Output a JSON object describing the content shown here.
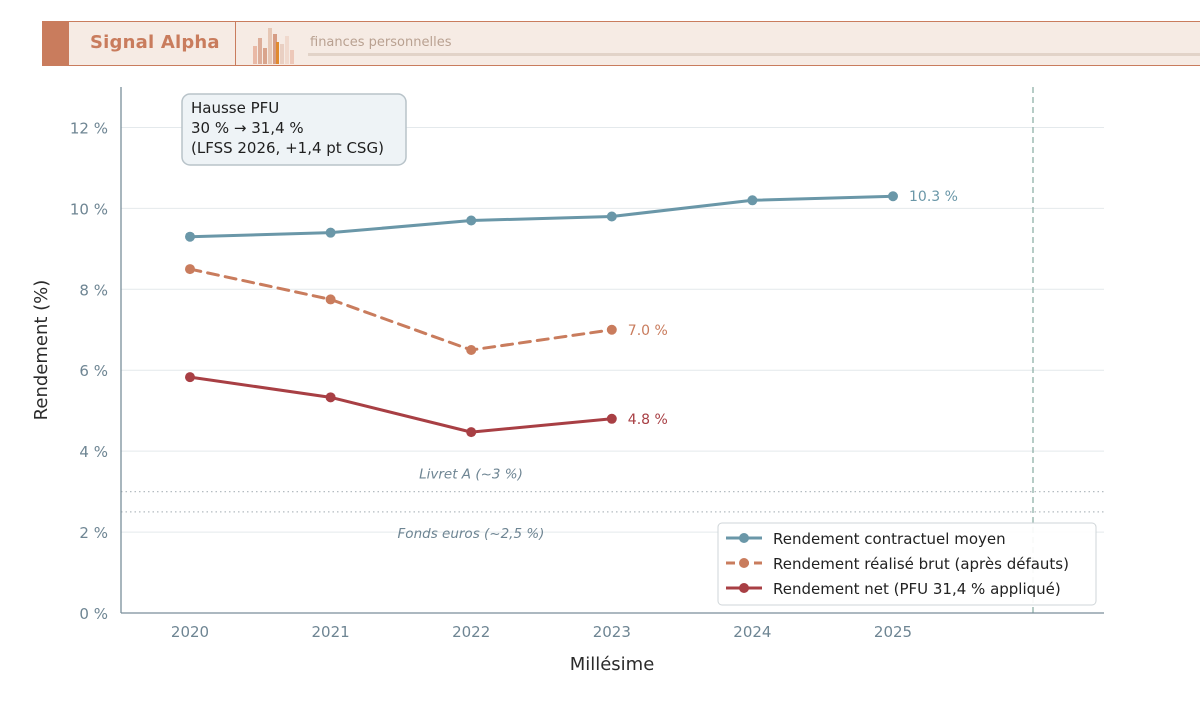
{
  "header": {
    "brand": "Signal Alpha",
    "tagline": "finances personnelles",
    "accent": "#c97c5d"
  },
  "chart_data": {
    "type": "line",
    "xlabel": "Millésime",
    "ylabel": "Rendement (%)",
    "ylim": [
      0,
      13
    ],
    "yticks": [
      0,
      2,
      4,
      6,
      8,
      10,
      12
    ],
    "ytick_labels": [
      "0 %",
      "2 %",
      "4 %",
      "6 %",
      "8 %",
      "10 %",
      "12 %"
    ],
    "x_categories": [
      "2020",
      "2021",
      "2022",
      "2023",
      "2024",
      "2025"
    ],
    "grid": true,
    "legend_position": "bottom-right",
    "series": [
      {
        "name": "Rendement contractuel moyen",
        "color": "#6a97a8",
        "style": "solid",
        "x": [
          "2020",
          "2021",
          "2022",
          "2023",
          "2024",
          "2025"
        ],
        "values": [
          9.3,
          9.4,
          9.7,
          9.8,
          10.2,
          10.3
        ],
        "end_label": "10.3 %"
      },
      {
        "name": "Rendement réalisé brut (après défauts)",
        "color": "#c97c5d",
        "style": "dashed",
        "x": [
          "2020",
          "2021",
          "2022",
          "2023"
        ],
        "values": [
          8.5,
          7.75,
          6.5,
          7.0
        ],
        "end_label": "7.0 %"
      },
      {
        "name": "Rendement net (PFU 31,4 % appliqué)",
        "color": "#a83f44",
        "style": "solid",
        "x": [
          "2020",
          "2021",
          "2022",
          "2023"
        ],
        "values": [
          5.83,
          5.33,
          4.47,
          4.8
        ],
        "end_label": "4.8 %"
      }
    ],
    "reference_lines": [
      {
        "label": "Livret A (~3 %)",
        "value": 3.0
      },
      {
        "label": "Fonds euros (~2,5 %)",
        "value": 2.5
      }
    ],
    "annotation": {
      "lines": [
        "Hausse PFU",
        "30 % → 31,4 %",
        "(LFSS 2026, +1,4 pt CSG)"
      ]
    },
    "colors": {
      "axis": "#7a8e9a",
      "grid": "#e4e9ec",
      "tick_text": "#6e8593",
      "label_text": "#2b2b2b",
      "reference": "#b4bcc1",
      "vline": "#8fb0a8"
    }
  }
}
